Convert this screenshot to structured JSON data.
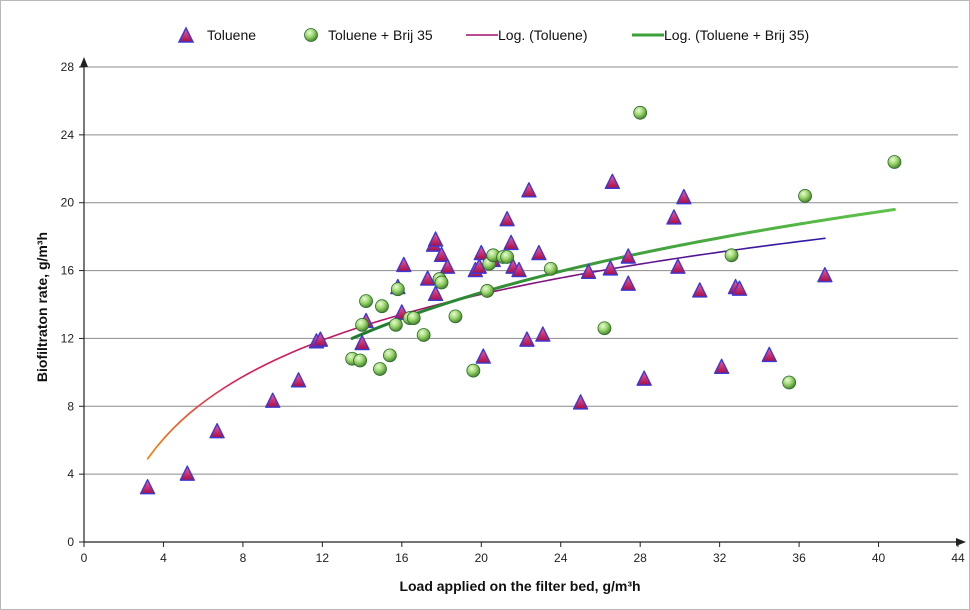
{
  "chart_data": {
    "type": "scatter",
    "xlabel": "Load applied on the filter bed, g/m³h",
    "ylabel": "Biofiltraton rate, g/m³h",
    "xlim": [
      0,
      44
    ],
    "ylim": [
      0,
      28
    ],
    "x_ticks": [
      0,
      4,
      8,
      12,
      16,
      20,
      24,
      28,
      32,
      36,
      40,
      44
    ],
    "y_ticks": [
      0,
      4,
      8,
      12,
      16,
      20,
      24,
      28
    ],
    "grid": "horizontal",
    "legend_position": "top",
    "legend": [
      "Toluene",
      "Toluene + Brij 35",
      "Log. (Toluene)",
      "Log. (Toluene + Brij 35)"
    ],
    "series": [
      {
        "name": "Toluene",
        "marker": "triangle",
        "color": "#c2185b",
        "border": "#3a3ad8",
        "points": [
          [
            3.2,
            3.2
          ],
          [
            5.2,
            4.0
          ],
          [
            6.7,
            6.5
          ],
          [
            9.5,
            8.3
          ],
          [
            10.8,
            9.5
          ],
          [
            11.7,
            11.8
          ],
          [
            11.9,
            11.9
          ],
          [
            14.0,
            11.7
          ],
          [
            14.2,
            13.0
          ],
          [
            16.0,
            13.5
          ],
          [
            15.8,
            15.0
          ],
          [
            16.1,
            16.3
          ],
          [
            17.3,
            15.5
          ],
          [
            17.7,
            14.6
          ],
          [
            17.6,
            17.5
          ],
          [
            17.7,
            17.8
          ],
          [
            18.0,
            16.9
          ],
          [
            18.3,
            16.2
          ],
          [
            19.7,
            16.0
          ],
          [
            19.9,
            16.2
          ],
          [
            20.0,
            17.0
          ],
          [
            20.1,
            10.9
          ],
          [
            20.6,
            16.6
          ],
          [
            21.3,
            19.0
          ],
          [
            21.5,
            17.6
          ],
          [
            21.6,
            16.2
          ],
          [
            21.9,
            16.0
          ],
          [
            22.3,
            11.9
          ],
          [
            22.4,
            20.7
          ],
          [
            22.9,
            17.0
          ],
          [
            23.1,
            12.2
          ],
          [
            25.0,
            8.2
          ],
          [
            25.4,
            15.9
          ],
          [
            26.5,
            16.1
          ],
          [
            26.6,
            21.2
          ],
          [
            27.4,
            16.8
          ],
          [
            27.4,
            15.2
          ],
          [
            28.2,
            9.6
          ],
          [
            29.7,
            19.1
          ],
          [
            29.9,
            16.2
          ],
          [
            30.2,
            20.3
          ],
          [
            31.0,
            14.8
          ],
          [
            32.1,
            10.3
          ],
          [
            32.8,
            15.0
          ],
          [
            33.0,
            14.9
          ],
          [
            34.5,
            11.0
          ],
          [
            37.3,
            15.7
          ]
        ]
      },
      {
        "name": "Toluene + Brij 35",
        "marker": "circle",
        "color": "#8fcf5a",
        "border": "#2e6b2e",
        "points": [
          [
            13.5,
            10.8
          ],
          [
            13.9,
            10.7
          ],
          [
            14.0,
            12.8
          ],
          [
            14.2,
            14.2
          ],
          [
            14.9,
            10.2
          ],
          [
            15.0,
            13.9
          ],
          [
            15.4,
            11.0
          ],
          [
            15.7,
            12.8
          ],
          [
            15.8,
            14.9
          ],
          [
            16.4,
            13.2
          ],
          [
            16.6,
            13.2
          ],
          [
            17.1,
            12.2
          ],
          [
            17.9,
            15.5
          ],
          [
            18.0,
            15.3
          ],
          [
            18.7,
            13.3
          ],
          [
            19.6,
            10.1
          ],
          [
            20.3,
            14.8
          ],
          [
            20.4,
            16.4
          ],
          [
            20.6,
            16.9
          ],
          [
            21.1,
            16.8
          ],
          [
            21.3,
            16.8
          ],
          [
            23.5,
            16.1
          ],
          [
            26.2,
            12.6
          ],
          [
            28.0,
            25.3
          ],
          [
            32.6,
            16.9
          ],
          [
            35.5,
            9.4
          ],
          [
            36.3,
            20.4
          ],
          [
            40.8,
            22.4
          ]
        ]
      }
    ],
    "trendlines": [
      {
        "name": "Log. (Toluene)",
        "type": "logarithmic",
        "x_range": [
          3.2,
          37.3
        ],
        "y_start": 4.9,
        "y_end": 17.9
      },
      {
        "name": "Log. (Toluene + Brij 35)",
        "type": "logarithmic",
        "x_range": [
          13.5,
          40.8
        ],
        "y_start": 12.0,
        "y_end": 19.6
      }
    ]
  }
}
